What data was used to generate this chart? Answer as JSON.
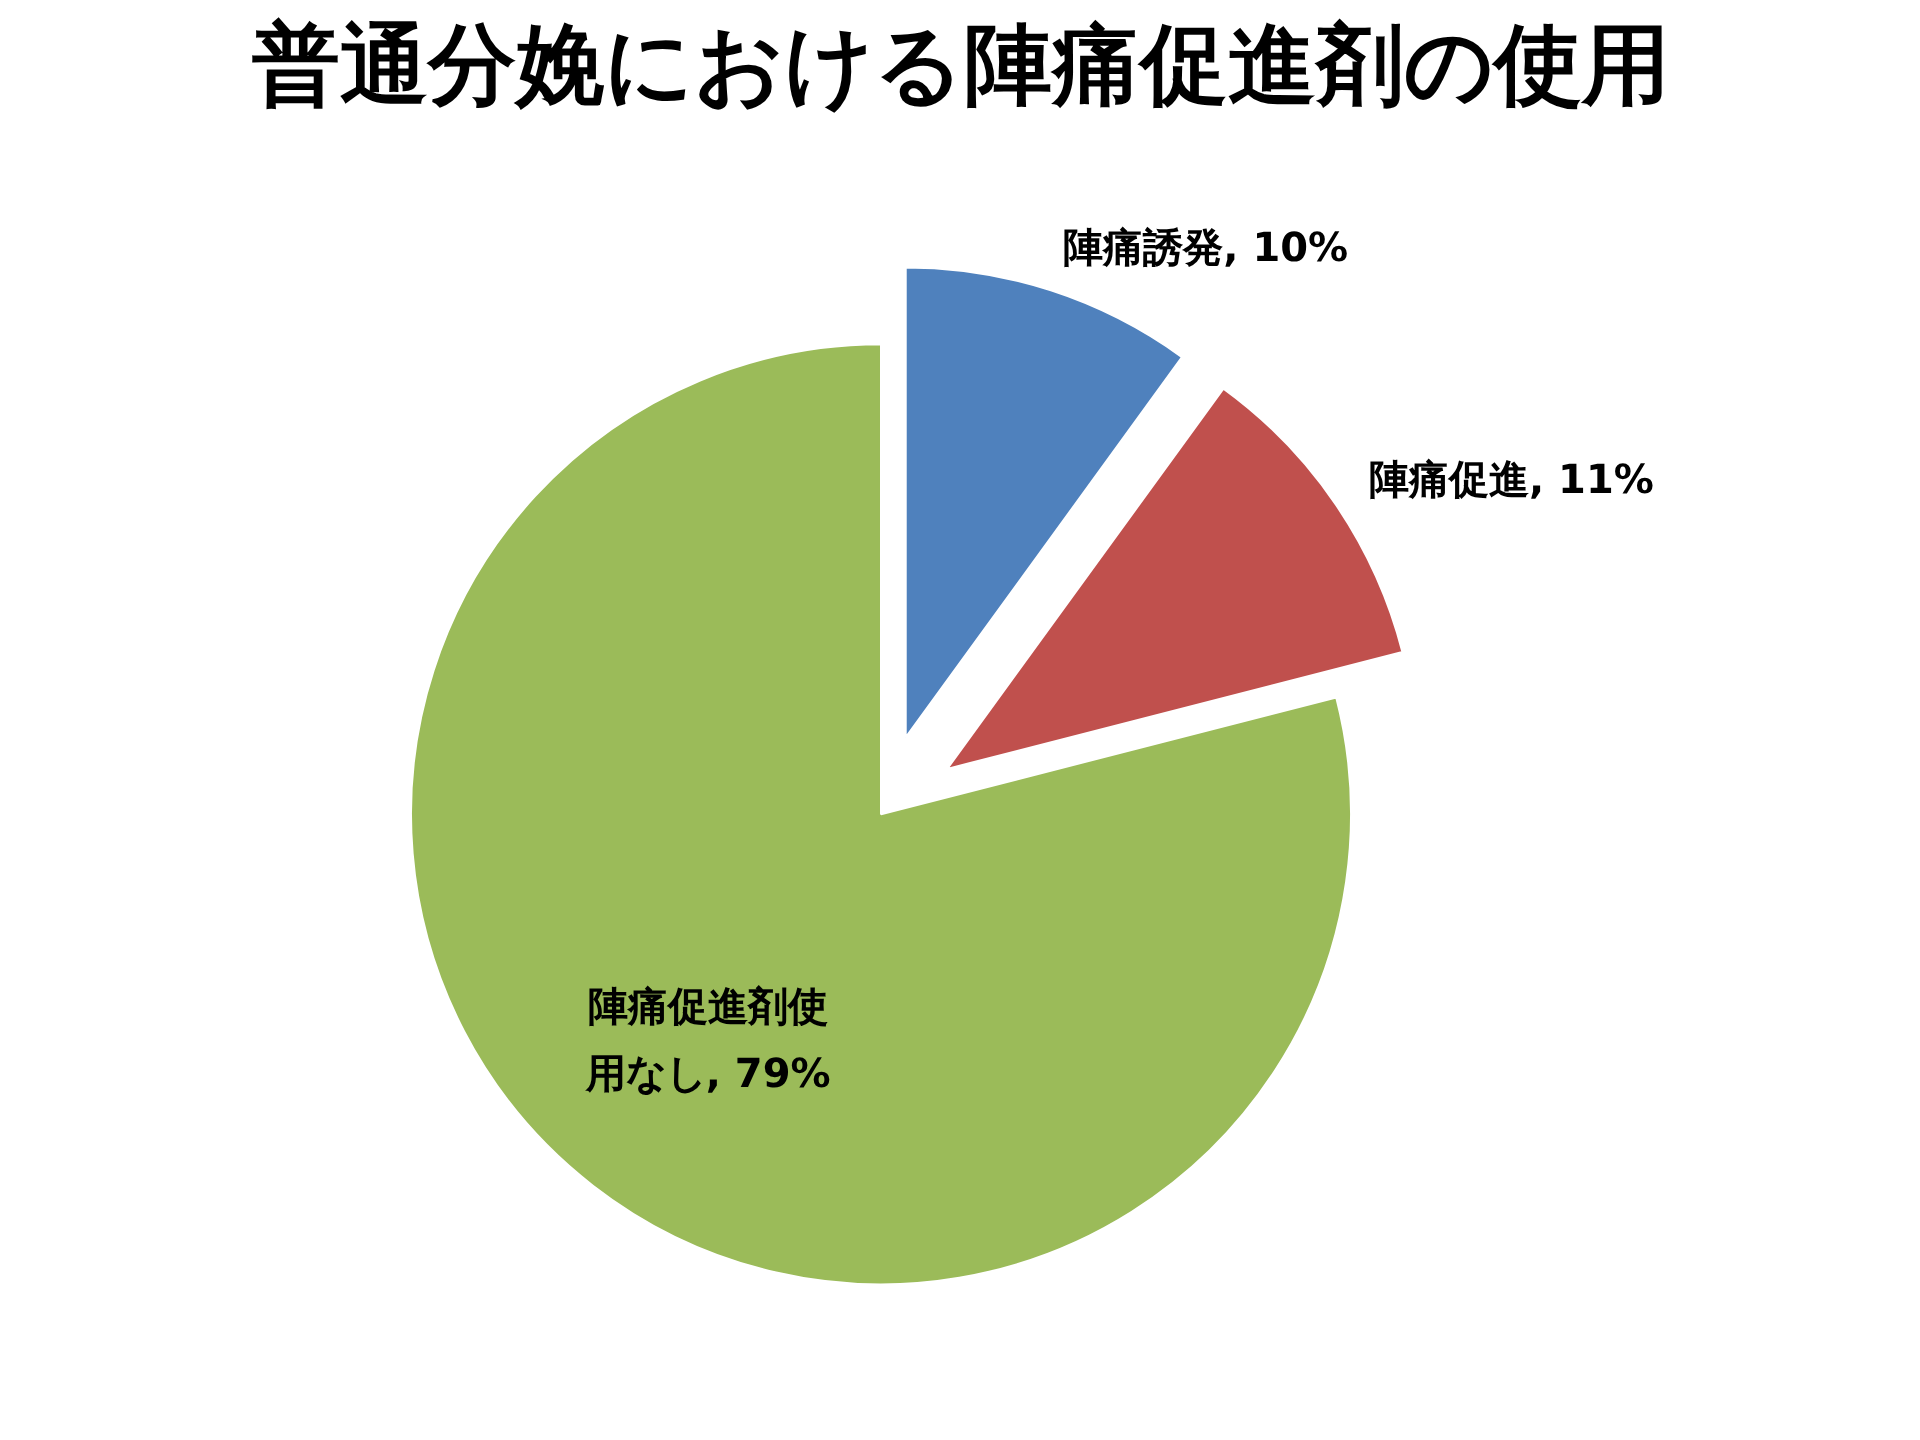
{
  "chart_data": {
    "type": "pie",
    "title": "普通分娩における陣痛促進剤の使用",
    "categories": [
      "陣痛誘発",
      "陣痛促進",
      "陣痛促進剤使用なし"
    ],
    "values": [
      10,
      11,
      79
    ],
    "colors": [
      "#4f81bd",
      "#c0504d",
      "#9bbb59"
    ],
    "value_labels": [
      "10%",
      "11%",
      "79%"
    ]
  }
}
